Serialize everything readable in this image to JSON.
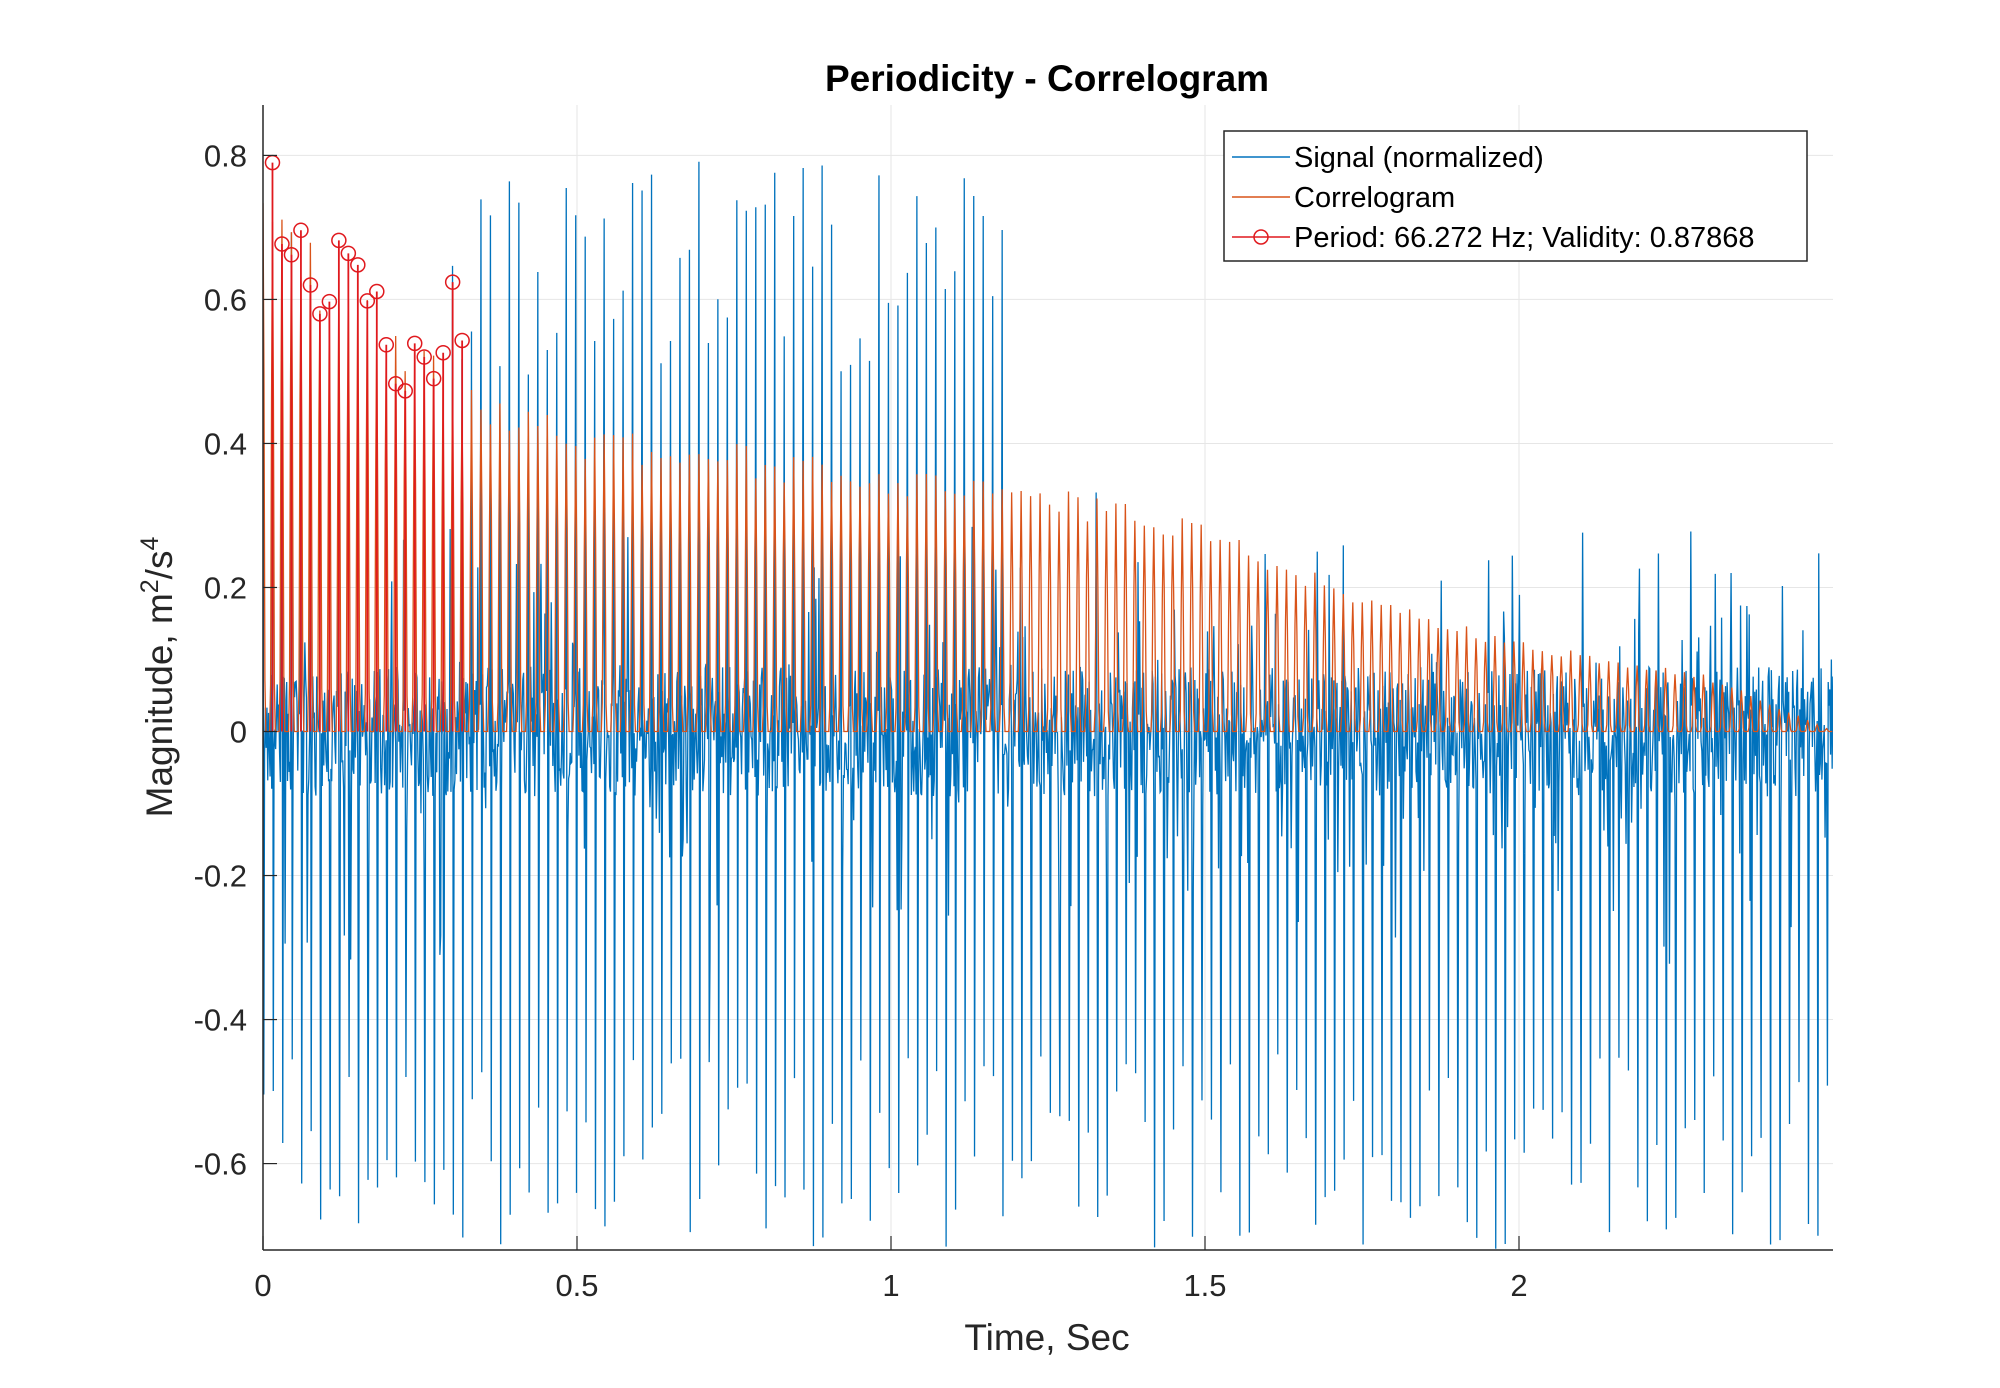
{
  "chart_data": {
    "type": "line",
    "title": "Periodicity - Correlogram",
    "xlabel": "Time, Sec",
    "ylabel": "Magnitude, m",
    "ylabel_sup1": "2",
    "ylabel_mid": "/s",
    "ylabel_sup2": "4",
    "xlim": [
      0,
      2.5
    ],
    "ylim": [
      -0.72,
      0.87
    ],
    "xticks": [
      0,
      0.5,
      1,
      1.5,
      2
    ],
    "xtick_labels": [
      "0",
      "0.5",
      "1",
      "1.5",
      "2"
    ],
    "yticks": [
      -0.6,
      -0.4,
      -0.2,
      0,
      0.2,
      0.4,
      0.6,
      0.8
    ],
    "ytick_labels": [
      "-0.6",
      "-0.4",
      "-0.2",
      "0",
      "0.2",
      "0.4",
      "0.6",
      "0.8"
    ],
    "grid": true,
    "legend_position": "top-right",
    "series": [
      {
        "name": "Signal (normalized)",
        "color": "#0072BD",
        "kind": "oscillation",
        "period_sec": 0.01509,
        "peak_envelope": [
          [
            0,
            0.78
          ],
          [
            0.5,
            0.8
          ],
          [
            1.0,
            0.8
          ],
          [
            1.5,
            0.8
          ],
          [
            2.0,
            0.8
          ],
          [
            2.5,
            0.8
          ]
        ],
        "trough_envelope": [
          [
            0,
            -0.72
          ],
          [
            0.5,
            -0.72
          ],
          [
            1.0,
            -0.72
          ],
          [
            1.5,
            -0.72
          ],
          [
            2.0,
            -0.72
          ],
          [
            2.5,
            -0.72
          ]
        ]
      },
      {
        "name": "Correlogram",
        "color": "#D95319",
        "kind": "decaying-oscillation",
        "period_sec": 0.01509,
        "peak_envelope": [
          [
            0,
            0.79
          ],
          [
            0.1,
            0.65
          ],
          [
            0.2,
            0.58
          ],
          [
            0.3,
            0.5
          ],
          [
            0.5,
            0.43
          ],
          [
            0.75,
            0.4
          ],
          [
            1.0,
            0.37
          ],
          [
            1.25,
            0.34
          ],
          [
            1.5,
            0.3
          ],
          [
            1.7,
            0.21
          ],
          [
            1.9,
            0.15
          ],
          [
            2.1,
            0.11
          ],
          [
            2.3,
            0.08
          ],
          [
            2.4,
            0.04
          ],
          [
            2.5,
            0.0
          ]
        ],
        "trough_envelope": [
          [
            0,
            0.0
          ],
          [
            2.5,
            0.0
          ]
        ]
      },
      {
        "name": "Period: 66.272 Hz; Validity: 0.87868",
        "color": "#E0191E",
        "kind": "stem-markers",
        "marker": "circle",
        "points": [
          [
            0.0151,
            0.79
          ],
          [
            0.0302,
            0.677
          ],
          [
            0.0453,
            0.662
          ],
          [
            0.0604,
            0.696
          ],
          [
            0.0755,
            0.62
          ],
          [
            0.0906,
            0.58
          ],
          [
            0.1057,
            0.597
          ],
          [
            0.1208,
            0.682
          ],
          [
            0.1359,
            0.664
          ],
          [
            0.151,
            0.648
          ],
          [
            0.1661,
            0.598
          ],
          [
            0.1812,
            0.611
          ],
          [
            0.1963,
            0.537
          ],
          [
            0.2114,
            0.483
          ],
          [
            0.2265,
            0.473
          ],
          [
            0.2416,
            0.539
          ],
          [
            0.2567,
            0.52
          ],
          [
            0.2718,
            0.49
          ],
          [
            0.2869,
            0.526
          ],
          [
            0.302,
            0.624
          ],
          [
            0.3171,
            0.543
          ]
        ]
      }
    ]
  }
}
